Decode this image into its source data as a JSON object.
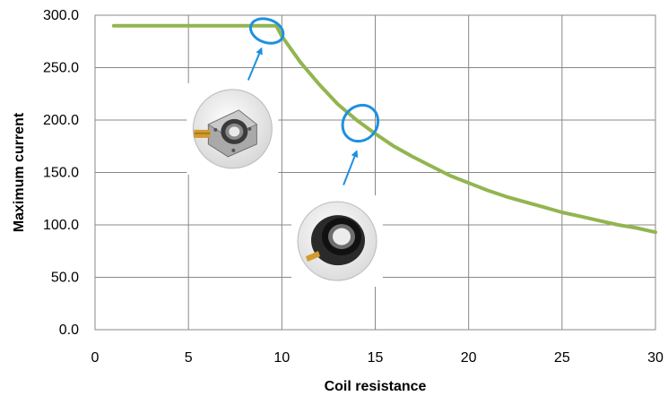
{
  "chart_data": {
    "type": "line",
    "title": "",
    "xlabel": "Coil resistance",
    "ylabel": "Maximum current",
    "xlim": [
      0,
      30
    ],
    "ylim": [
      0,
      300
    ],
    "x_ticks": [
      "0",
      "5",
      "10",
      "15",
      "20",
      "25",
      "30"
    ],
    "y_ticks": [
      "0.0",
      "50.0",
      "100.0",
      "150.0",
      "200.0",
      "250.0",
      "300.0"
    ],
    "grid": true,
    "legend": "none",
    "series": [
      {
        "color": "#92b550",
        "x": [
          1,
          2,
          3,
          4,
          5,
          6,
          7,
          8,
          9,
          9.7,
          10,
          11,
          12,
          13,
          14,
          15,
          16,
          17,
          18,
          19,
          20,
          21,
          22,
          23,
          24,
          25,
          26,
          27,
          28,
          29,
          30
        ],
        "y": [
          290,
          290,
          290,
          290,
          290,
          290,
          290,
          290,
          290,
          290,
          280,
          255,
          234,
          215,
          200,
          187,
          175,
          165,
          156,
          147,
          140,
          133,
          127,
          122,
          117,
          112,
          108,
          104,
          100,
          97,
          93
        ]
      }
    ],
    "annotations": [
      {
        "type": "ellipse",
        "color": "#1e90e0",
        "cx": 9.2,
        "cy": 285,
        "rx": 0.9,
        "ry": 11,
        "rotate": 20
      },
      {
        "type": "ellipse",
        "color": "#1e90e0",
        "cx": 14.2,
        "cy": 197,
        "rx": 0.9,
        "ry": 18,
        "rotate": 40
      },
      {
        "type": "arrow",
        "color": "#1e90e0",
        "from": [
          8.2,
          238
        ],
        "to": [
          8.9,
          268
        ]
      },
      {
        "type": "arrow",
        "color": "#1e90e0",
        "from": [
          13.3,
          138
        ],
        "to": [
          14.0,
          170
        ]
      },
      {
        "type": "image",
        "name": "open-frame-actuator-photo",
        "x": 5.2,
        "y": 230
      },
      {
        "type": "image",
        "name": "closed-cylindrical-actuator-photo",
        "x": 10.8,
        "y": 123
      }
    ]
  }
}
